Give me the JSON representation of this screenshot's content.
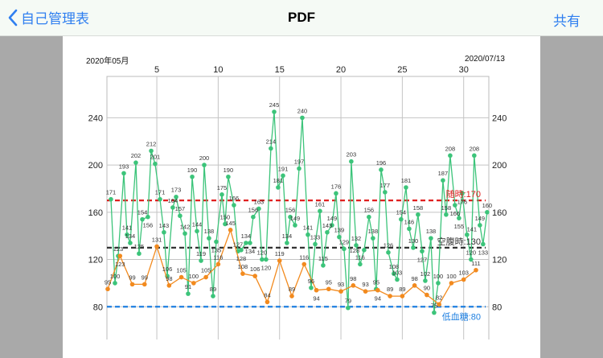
{
  "navbar": {
    "back_label": "自己管理表",
    "title": "PDF",
    "share_label": "共有",
    "accent": "#2f7ff0"
  },
  "document": {
    "month_label": "2020年05月",
    "date_label": "2020/07/13"
  },
  "chart_data": {
    "type": "line",
    "x_tick_labels": [
      "5",
      "10",
      "15",
      "20",
      "25",
      "30"
    ],
    "x_ticks": [
      5,
      10,
      15,
      20,
      25,
      30
    ],
    "y_ticks": [
      80,
      120,
      160,
      200,
      240
    ],
    "y_tick_labels": [
      "80",
      "120",
      "160",
      "200",
      "240"
    ],
    "xlim": [
      1,
      32.05
    ],
    "ylim": [
      40,
      275
    ],
    "grid": true,
    "thresholds": [
      {
        "label": "随時:170",
        "value": 170,
        "color": "#e02020"
      },
      {
        "label": "空腹時:130",
        "value": 130,
        "color": "#333333"
      },
      {
        "label": "低血糖:80",
        "value": 80,
        "color": "#1e7fe0"
      }
    ],
    "series": [
      {
        "color": "#3cc47a",
        "x": [
          1.26,
          1.59,
          1.85,
          2.31,
          2.57,
          2.83,
          3.29,
          3.55,
          3.82,
          4.27,
          4.54,
          4.86,
          5.26,
          5.58,
          5.85,
          6.3,
          6.57,
          6.89,
          7.29,
          7.55,
          7.88,
          8.27,
          8.6,
          8.86,
          9.25,
          9.58,
          9.84,
          10.3,
          10.56,
          10.82,
          11.28,
          11.61,
          11.87,
          12.26,
          12.59,
          12.85,
          13.31,
          13.57,
          13.9,
          14.29,
          14.56,
          14.88,
          15.28,
          15.6,
          15.87,
          16.26,
          16.59,
          16.85,
          17.31,
          17.57,
          17.9,
          18.29,
          18.55,
          18.88,
          19.27,
          19.6,
          19.86,
          20.25,
          20.58,
          20.84,
          21.24,
          21.56,
          21.89,
          22.28,
          22.61,
          22.87,
          23.27,
          23.59,
          23.86,
          24.31,
          24.58,
          24.9,
          25.3,
          25.56,
          25.89,
          26.28,
          26.61,
          26.87,
          27.33,
          27.59,
          27.92,
          28.31,
          28.57,
          28.9,
          29.29,
          29.62,
          29.88,
          30.27,
          30.6,
          30.86,
          31.32,
          31.58,
          31.91
        ],
        "values": [
          171,
          100,
          123,
          193,
          141,
          134,
          202,
          125,
          154,
          156,
          212,
          201,
          171,
          143,
          106,
          164,
          173,
          157,
          142,
          91,
          190,
          144,
          119,
          200,
          138,
          89,
          135,
          175,
          150,
          190,
          166,
          127,
          128,
          134,
          134,
          156,
          163,
          120,
          120,
          214,
          245,
          181,
          191,
          134,
          156,
          149,
          197,
          240,
          141,
          96,
          133,
          161,
          115,
          143,
          149,
          176,
          139,
          129,
          79,
          203,
          132,
          116,
          128,
          156,
          138,
          95,
          196,
          177,
          126,
          108,
          103,
          154,
          181,
          146,
          130,
          158,
          127,
          102,
          138,
          75,
          100,
          187,
          158,
          208,
          166,
          155,
          176,
          141,
          120,
          208,
          149,
          133,
          160
        ]
      },
      {
        "color": "#f28a1e",
        "x": [
          1,
          2,
          3,
          4,
          5,
          6,
          7,
          8,
          9,
          10,
          11,
          12,
          13,
          14,
          15,
          16,
          17,
          18,
          19,
          20,
          21,
          22,
          23,
          24,
          25,
          26,
          27,
          28,
          29,
          30,
          31
        ],
        "values": [
          95,
          123,
          99,
          99,
          131,
          98,
          105,
          100,
          105,
          116,
          145,
          108,
          106,
          84,
          119,
          89,
          116,
          94,
          95,
          93,
          98,
          93,
          94,
          89,
          89,
          98,
          90,
          82,
          100,
          103,
          111
        ]
      }
    ]
  }
}
